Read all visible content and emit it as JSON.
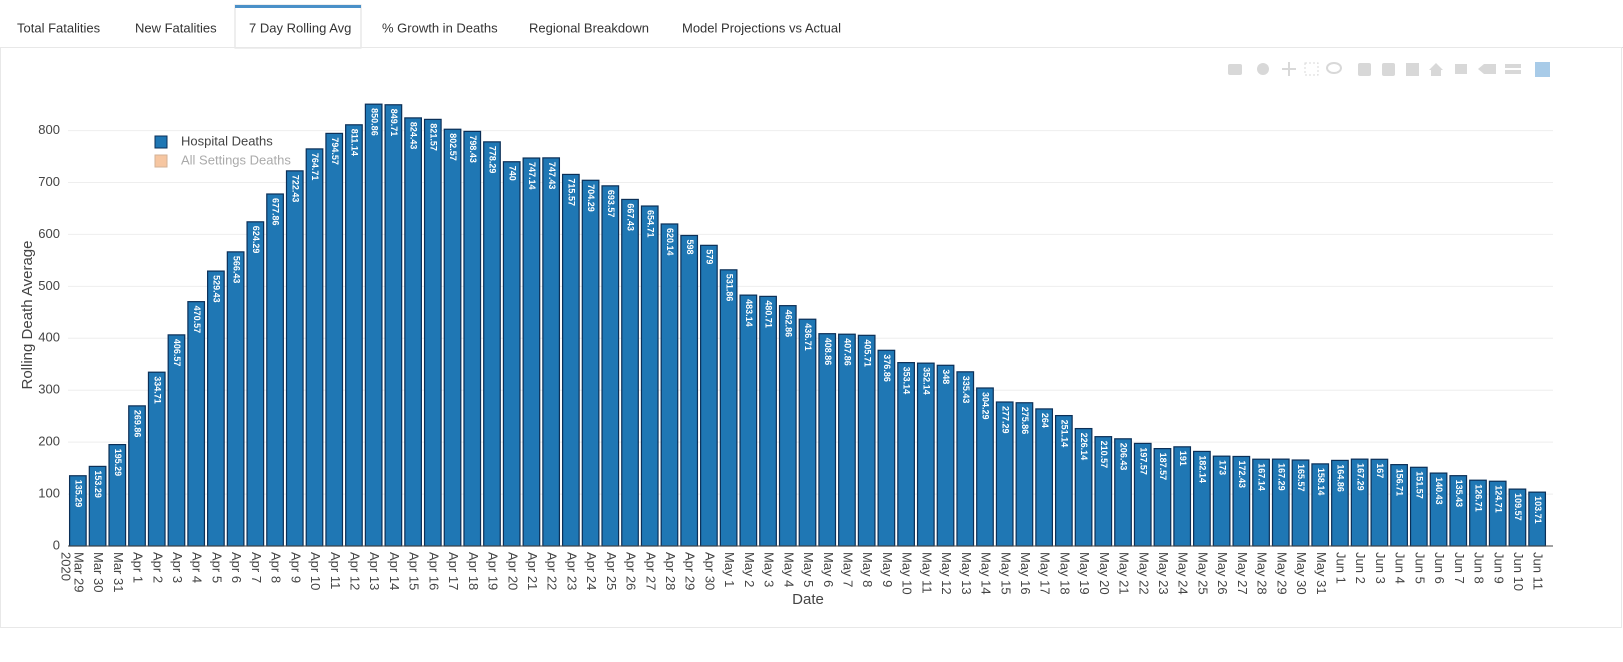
{
  "tabs": [
    "Total Fatalities",
    "New Fatalities",
    "7 Day Rolling Avg",
    "% Growth in Deaths",
    "Regional Breakdown",
    "Model Projections vs Actual"
  ],
  "active_tab": 2,
  "chart_data": {
    "type": "bar",
    "x_label": "Date",
    "y_label": "Rolling Death Average",
    "x_year_label": "2020",
    "categories": [
      "Mar 29",
      "Mar 30",
      "Mar 31",
      "Apr 1",
      "Apr 2",
      "Apr 3",
      "Apr 4",
      "Apr 5",
      "Apr 6",
      "Apr 7",
      "Apr 8",
      "Apr 9",
      "Apr 10",
      "Apr 11",
      "Apr 12",
      "Apr 13",
      "Apr 14",
      "Apr 15",
      "Apr 16",
      "Apr 17",
      "Apr 18",
      "Apr 19",
      "Apr 20",
      "Apr 21",
      "Apr 22",
      "Apr 23",
      "Apr 24",
      "Apr 25",
      "Apr 26",
      "Apr 27",
      "Apr 28",
      "Apr 29",
      "Apr 30",
      "May 1",
      "May 2",
      "May 3",
      "May 4",
      "May 5",
      "May 6",
      "May 7",
      "May 8",
      "May 9",
      "May 10",
      "May 11",
      "May 12",
      "May 13",
      "May 14",
      "May 15",
      "May 16",
      "May 17",
      "May 18",
      "May 19",
      "May 20",
      "May 21",
      "May 22",
      "May 23",
      "May 24",
      "May 25",
      "May 26",
      "May 27",
      "May 28",
      "May 29",
      "May 30",
      "May 31",
      "Jun 1",
      "Jun 2",
      "Jun 3",
      "Jun 4",
      "Jun 5",
      "Jun 6",
      "Jun 7",
      "Jun 8",
      "Jun 9",
      "Jun 10",
      "Jun 11"
    ],
    "series": [
      {
        "name": "Hospital Deaths",
        "color": "#1f77b4",
        "values": [
          135.29,
          153.29,
          195.29,
          269.86,
          334.71,
          406.57,
          470.57,
          529.43,
          566.43,
          624.29,
          677.86,
          722.43,
          764.71,
          794.57,
          811.14,
          850.86,
          849.71,
          824.43,
          821.57,
          802.57,
          798.43,
          778.29,
          740,
          747.14,
          747.43,
          715.57,
          704.29,
          693.57,
          667.43,
          654.71,
          620.14,
          598,
          579,
          531.86,
          483.14,
          480.71,
          462.86,
          436.71,
          408.86,
          407.86,
          405.71,
          376.86,
          353.14,
          352.14,
          348,
          335.43,
          304.29,
          277.29,
          275.86,
          264,
          251.14,
          226.14,
          210.57,
          206.43,
          197.57,
          187.57,
          191,
          182.14,
          173,
          172.43,
          167.14,
          167.29,
          165.57,
          158.14,
          164.86,
          167.29,
          167,
          156.71,
          151.57,
          140.43,
          135.43,
          126.71,
          124.71,
          109.57,
          103.71
        ]
      }
    ],
    "legend_only": [
      {
        "name": "All Settings Deaths",
        "color": "#f4b98a"
      }
    ],
    "ylim": [
      0,
      882
    ],
    "yticks": [
      0,
      100,
      200,
      300,
      400,
      500,
      600,
      700,
      800
    ],
    "grid": true
  }
}
